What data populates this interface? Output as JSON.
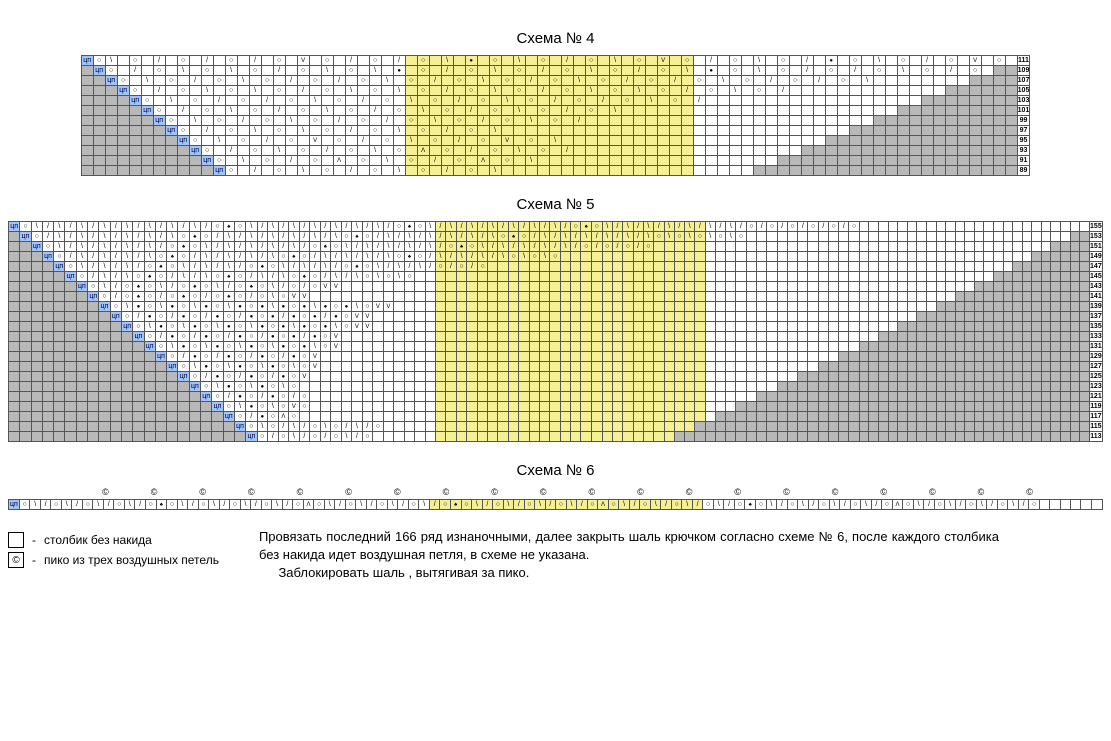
{
  "titles": {
    "c4": "Схема № 4",
    "c5": "Схема № 5",
    "c6": "Схема № 6"
  },
  "legend": {
    "sc": "столбик без накида",
    "picot": "пико из трех воздушных петель"
  },
  "instructions": {
    "p1": "Провязать последний 166 ряд изнаночными, далее закрыть шаль крючком согласно схеме № 6, после каждого столбика без накида идет воздушная петля, в схеме не указана.",
    "p2": "Заблокировать шаль , вытягивая за пико."
  },
  "colors": {
    "grey": "#b8b8b8",
    "yellow": "#f6f095",
    "blue": "#9fc4ff",
    "grid": "#555555",
    "page_bg": "#ffffff"
  },
  "symbols": {
    "g": "grey-empty",
    "y": "yellow-empty",
    "w": "white-empty",
    "b": "blue-ЦП",
    "o": "yarn-over(○)",
    "/": "right-dec(/)",
    "\\": "left-dec(\\)",
    ".": "purl-bump(●)",
    "v": "V",
    "^": "Λ",
    "*": "bud(♠)",
    "@": "picot(©)"
  },
  "chart4": {
    "cols": 78,
    "yellow_start": 27,
    "yellow_end": 51,
    "left_grey_by_row": {
      "111": 0,
      "109": 2,
      "107": 4,
      "105": 6,
      "103": 8,
      "101": 10,
      "99": 12,
      "97": 14,
      "95": 16,
      "93": 18,
      "91": 20,
      "89": 22
    },
    "rows": [
      {
        "n": 111,
        "s": "bo\\ o / o / o / o v o / o / o \\ . o \\ o / o \\ o v o / o \\ o / . o \\ o / o v o / o \\ o / ow"
      },
      {
        "n": 109,
        "s": "gbo / o \\ o \\ o / o \\ o \\ . o / o \\ o / o \\ o / o \\ . o \\ o / o / o \\ o / o \\w"
      },
      {
        "n": 107,
        "s": "ggbo \\ o / o \\ o / o / o \\ o / o \\ o / o \\ o / o / o \\ o / o / o \\w"
      },
      {
        "n": 105,
        "s": "gggbo / o \\ o \\ o / o \\ o \\ o / o \\ o / o \\ o \\ o / o \\ o /w"
      },
      {
        "n": 103,
        "s": "ggggbo \\ o / o / o \\ o / o \\ o / o \\ o / o / o \\ o /w"
      },
      {
        "n": 101,
        "s": "gggggbo / o \\ o / o \\ o / o \\ o / o \\ o / o \\w"
      },
      {
        "n": 99,
        "s": "ggggggbo \\ o / o \\ o / o / o \\ o / o \\ o /w"
      },
      {
        "n": 97,
        "s": "gggggggbo / o \\ o \\ o / o \\ o / o \\w"
      },
      {
        "n": 95,
        "s": "ggggggggbo \\ o / o v o / o \\ o / o v o \\w"
      },
      {
        "n": 93,
        "s": "gggggggggbo / o \\ o / o \\ o ^ o / o \\ o /w"
      },
      {
        "n": 91,
        "s": "ggggggggggbo \\ o / o ^ o \\ o / o ^ o \\w"
      },
      {
        "n": 89,
        "s": "gggggggggggbo / o \\ o / o \\ o / o \\w"
      }
    ]
  },
  "chart5": {
    "cols": 104,
    "yellow_start": 39,
    "yellow_end": 65,
    "left_grey_by_row": {
      "155": 0,
      "153": 2,
      "151": 4,
      "149": 6,
      "147": 8,
      "145": 10,
      "143": 12,
      "141": 14,
      "139": 16,
      "137": 18,
      "135": 20,
      "133": 22,
      "131": 24,
      "129": 26,
      "127": 28,
      "125": 30,
      "123": 32,
      "121": 34,
      "119": 36,
      "117": 38,
      "115": 40,
      "113": 42
    },
    "rows": [
      {
        "n": 155,
        "s": "bo\\/\\/\\/\\/\\/\\/\\/\\/o*o\\/\\/\\/\\/\\/\\/\\/o*o\\/\\/\\/\\/\\/\\/\\/o*o\\/\\/\\/\\/\\/\\/\\/o/o/o/o/o/o"
      },
      {
        "n": 153,
        "s": "gbo/\\/\\/\\/\\/\\/\\o*o/\\/\\/\\/\\/\\/\\o*o/\\/\\/\\/\\/\\/\\o*o/\\/\\/\\/\\/\\/\\o\\o\\o\\o\\o"
      },
      {
        "n": 151,
        "s": "ggbo\\/\\/\\/\\/\\/o*o\\/\\/\\/\\/\\/o*o\\/\\/\\/\\/\\/o*o\\/\\/\\/\\/\\/o/o/o/o"
      },
      {
        "n": 149,
        "s": "gggbo/\\/\\/\\/\\o*o/\\/\\/\\/\\o*o/\\/\\/\\/\\o*o/\\/\\/\\/\\o\\o\\o"
      },
      {
        "n": 147,
        "s": "ggggbo\\/\\/\\/o*o\\/\\/\\/o*o\\/\\/\\/o*o\\/\\/\\/o/o/o"
      },
      {
        "n": 145,
        "s": "gggggbo/\\/\\o*o/\\/\\o*o/\\/\\o*o/\\/\\o\\o\\o"
      },
      {
        "n": 143,
        "s": "ggggggbo\\/o*o\\/o*o\\/o*o\\/o/ovv"
      },
      {
        "n": 141,
        "s": "gggggggbo/o*o/o*o/o*o/o\\ovv"
      },
      {
        "n": 139,
        "s": "ggggggggbo\\.o\\.o\\.o\\.o.\\.o.\\.o.\\ovv"
      },
      {
        "n": 137,
        "s": "gggggggggbo/.o/.o/.o/.o./.o./.ovv"
      },
      {
        "n": 135,
        "s": "ggggggggggbo\\.o\\.o\\.o\\.o.\\.o.\\ovv"
      },
      {
        "n": 133,
        "s": "gggggggggggbo/.o/.o/.o/.o./.ov"
      },
      {
        "n": 131,
        "s": "ggggggggggggbo\\.o\\.o\\.o\\.o.\\ov"
      },
      {
        "n": 129,
        "s": "gggggggggggggbo/.o/.o/.o/.ov"
      },
      {
        "n": 127,
        "s": "ggggggggggggggbo\\.o\\.o\\.o\\ov"
      },
      {
        "n": 125,
        "s": "gggggggggggggggbo/.o/.o/.ov"
      },
      {
        "n": 123,
        "s": "ggggggggggggggggbo\\.o\\.o\\o"
      },
      {
        "n": 121,
        "s": "gggggggggggggggggbo/.o/.o/o"
      },
      {
        "n": 119,
        "s": "ggggggggggggggggggbo\\.o\\ovo"
      },
      {
        "n": 117,
        "s": "gggggggggggggggggggbo/.o^o"
      },
      {
        "n": 115,
        "s": "ggggggggggggggggggggbo\\o/\\/o\\o/\\/o"
      },
      {
        "n": 113,
        "s": "gggggggggggggggggggggbo/o\\/o/o\\/o"
      }
    ]
  },
  "chart6": {
    "cols": 104,
    "yellow_start": 40,
    "yellow_end": 66,
    "picot_count": 20,
    "row": "bo\\/o\\/o\\/o\\/o*o\\/o\\/o\\/o\\/o^o\\/o\\/o\\/o\\/o*o\\/o\\/o\\/o\\/o^o\\/o\\/o\\/o\\/o*o\\/o\\/o\\/o\\/o^o\\/o\\/o\\/o\\/ow"
  }
}
